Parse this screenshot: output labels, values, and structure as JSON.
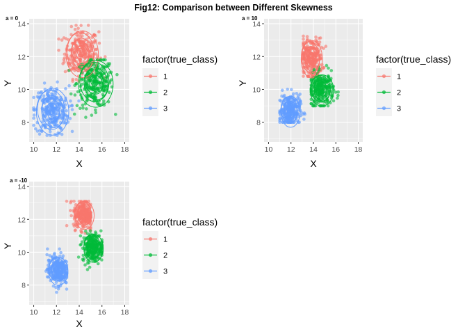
{
  "figure": {
    "title": "Fig12: Comparison between Different Skewness"
  },
  "chart_data": [
    {
      "type": "scatter",
      "tag": "a = 0",
      "xlabel": "X",
      "ylabel": "Y",
      "xlim": [
        9.6,
        18.4
      ],
      "ylim": [
        6.8,
        14.3
      ],
      "xticks": [
        10,
        12,
        14,
        16,
        18
      ],
      "yticks": [
        8,
        10,
        12,
        14
      ],
      "grid": true,
      "overlay": "2D density contours",
      "legend": {
        "title": "factor(true_class)",
        "placement": "right",
        "entries": [
          "1",
          "2",
          "3"
        ]
      },
      "colors": [
        "#F8766D",
        "#00BA38",
        "#619CFF"
      ],
      "series": [
        {
          "name": "1",
          "center": [
            14.2,
            12.2
          ],
          "spread": [
            0.75,
            0.75
          ],
          "extent_x": [
            12.2,
            16.6
          ],
          "extent_y": [
            10.5,
            13.9
          ]
        },
        {
          "name": "2",
          "center": [
            15.4,
            10.4
          ],
          "spread": [
            0.8,
            0.75
          ],
          "extent_x": [
            12.8,
            17.8
          ],
          "extent_y": [
            8.3,
            11.8
          ]
        },
        {
          "name": "3",
          "center": [
            11.6,
            8.7
          ],
          "spread": [
            0.75,
            0.75
          ],
          "extent_x": [
            10.0,
            14.6
          ],
          "extent_y": [
            7.2,
            10.9
          ]
        }
      ]
    },
    {
      "type": "scatter",
      "tag": "a = 10",
      "xlabel": "X",
      "ylabel": "Y",
      "xlim": [
        9.6,
        18.4
      ],
      "ylim": [
        6.8,
        14.3
      ],
      "xticks": [
        10,
        12,
        14,
        16,
        18
      ],
      "yticks": [
        8,
        10,
        12,
        14
      ],
      "grid": true,
      "overlay": "2D density contours",
      "legend": {
        "title": "factor(true_class)",
        "placement": "right",
        "entries": [
          "1",
          "2",
          "3"
        ]
      },
      "colors": [
        "#F8766D",
        "#00BA38",
        "#619CFF"
      ],
      "series": [
        {
          "name": "1",
          "center": [
            13.8,
            11.9
          ],
          "spread": [
            0.5,
            0.6
          ],
          "extent_x": [
            13.1,
            15.6
          ],
          "extent_y": [
            10.8,
            13.9
          ]
        },
        {
          "name": "2",
          "center": [
            14.7,
            10.0
          ],
          "spread": [
            0.55,
            0.5
          ],
          "extent_x": [
            13.8,
            17.3
          ],
          "extent_y": [
            9.0,
            11.5
          ]
        },
        {
          "name": "3",
          "center": [
            11.9,
            8.7
          ],
          "spread": [
            0.45,
            0.5
          ],
          "extent_x": [
            11.0,
            13.8
          ],
          "extent_y": [
            8.0,
            10.9
          ]
        }
      ]
    },
    {
      "type": "scatter",
      "tag": "a = -10",
      "xlabel": "X",
      "ylabel": "Y",
      "xlim": [
        9.6,
        18.4
      ],
      "ylim": [
        6.8,
        14.3
      ],
      "xticks": [
        10,
        12,
        14,
        16,
        18
      ],
      "yticks": [
        8,
        10,
        12,
        14
      ],
      "grid": true,
      "overlay": "2D density contours",
      "legend": {
        "title": "factor(true_class)",
        "placement": "right",
        "entries": [
          "1",
          "2",
          "3"
        ]
      },
      "colors": [
        "#F8766D",
        "#00BA38",
        "#619CFF"
      ],
      "series": [
        {
          "name": "1",
          "center": [
            14.4,
            12.3
          ],
          "spread": [
            0.45,
            0.45
          ],
          "extent_x": [
            12.9,
            15.0
          ],
          "extent_y": [
            11.0,
            13.1
          ]
        },
        {
          "name": "2",
          "center": [
            15.2,
            10.3
          ],
          "spread": [
            0.45,
            0.45
          ],
          "extent_x": [
            13.8,
            16.0
          ],
          "extent_y": [
            8.3,
            11.3
          ]
        },
        {
          "name": "3",
          "center": [
            12.1,
            8.9
          ],
          "spread": [
            0.45,
            0.45
          ],
          "extent_x": [
            10.4,
            12.9
          ],
          "extent_y": [
            7.0,
            10.2
          ]
        }
      ]
    }
  ]
}
